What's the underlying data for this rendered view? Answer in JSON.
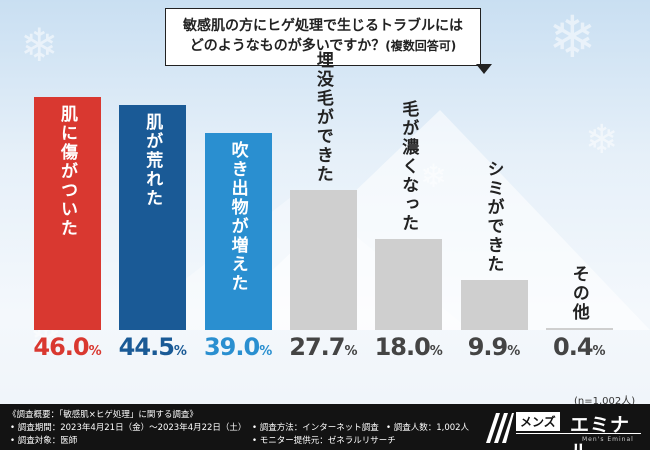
{
  "question": {
    "line1": "敏感肌の方にヒゲ処理で生じるトラブルには",
    "line2": "どのようなものが多いですか？",
    "paren": "(複数回答可)"
  },
  "chart_data": {
    "type": "bar",
    "title": "敏感肌の方にヒゲ処理で生じるトラブルにはどのようなものが多いですか？(複数回答可)",
    "categories": [
      "肌に傷がついた",
      "肌が荒れた",
      "吹き出物が増えた",
      "埋没毛ができた",
      "毛が濃くなった",
      "シミができた",
      "その他"
    ],
    "values": [
      46.0,
      44.5,
      39.0,
      27.7,
      18.0,
      9.9,
      0.4
    ],
    "labels": [
      "46.0",
      "44.5",
      "39.0",
      "27.7",
      "18.0",
      "9.9",
      "0.4"
    ],
    "unit": "%",
    "ylim": [
      0,
      50
    ],
    "colors": [
      "#d93830",
      "#1a5a96",
      "#2a8fd0",
      "#cfcfcf",
      "#cfcfcf",
      "#cfcfcf",
      "#cfcfcf"
    ],
    "value_colors": [
      "#d93830",
      "#1a5a96",
      "#2a8fd0",
      "#444444",
      "#444444",
      "#444444",
      "#444444"
    ],
    "label_colors": [
      "#ffffff",
      "#ffffff",
      "#ffffff",
      "#222222",
      "#222222",
      "#222222",
      "#222222"
    ]
  },
  "sample_note": "(n=1,002人)",
  "footer": {
    "title": "《調査概要：「敏感肌×ヒゲ処理」に関する調査》",
    "period": "• 調査期間：2023年4月21日（金）〜2023年4月22日（土）",
    "target": "• 調査対象：医師",
    "method": "• 調査方法：インターネット調査",
    "count": "• 調査人数：1,002人",
    "provider": "• モニター提供元：ゼネラルリサーチ"
  },
  "brand": {
    "jp": "メンズ",
    "name": "エミナル",
    "sub": "Men's Eminal"
  }
}
